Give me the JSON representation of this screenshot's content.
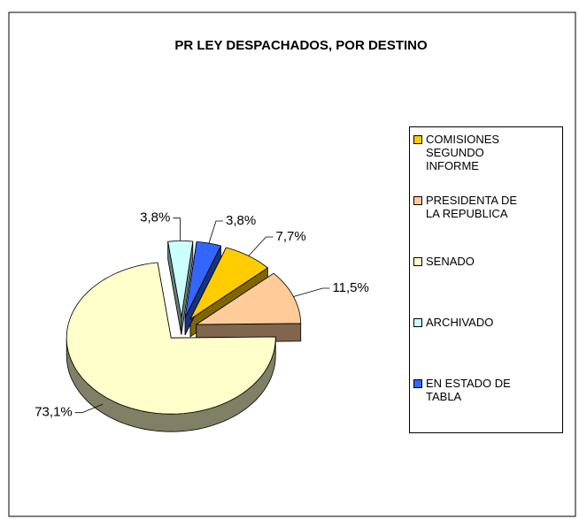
{
  "chart_data": {
    "type": "pie",
    "title": "PR LEY DESPACHADOS, POR DESTINO",
    "categories": [
      "COMISIONES SEGUNDO INFORME",
      "PRESIDENTA DE LA REPUBLICA",
      "SENADO",
      "ARCHIVADO",
      "EN ESTADO DE TABLA"
    ],
    "values": [
      7.7,
      11.5,
      73.1,
      3.8,
      3.8
    ],
    "value_labels": [
      "7,7%",
      "11,5%",
      "73,1%",
      "3,8%",
      "3,8%"
    ],
    "colors": [
      "#FFCC00",
      "#FFCC99",
      "#FFFFCC",
      "#CCFFFF",
      "#3366FF"
    ],
    "legend": "right"
  }
}
